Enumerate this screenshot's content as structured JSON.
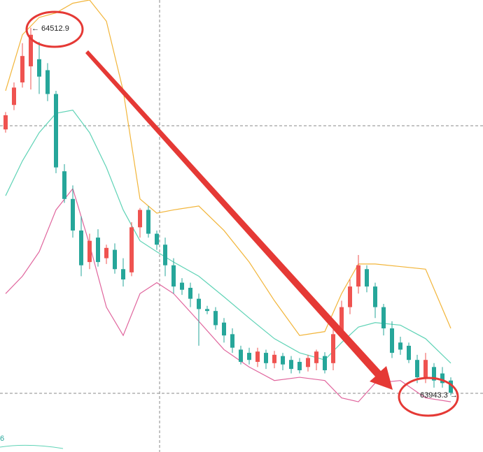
{
  "chart_data": {
    "type": "candlestick",
    "ylim": [
      63854,
      64556
    ],
    "up_color": "#ef5350",
    "down_color": "#26a69a",
    "open": [
      64355,
      64393,
      64428,
      64453,
      64464,
      64447,
      64410,
      64290,
      64247,
      64198,
      64149,
      64187,
      64155,
      64168,
      64138,
      64133,
      64203,
      64230,
      64193,
      64176,
      64144,
      64117,
      64109,
      64092,
      64076,
      64073,
      64055,
      64037,
      64013,
      64008,
      63994,
      64008,
      63992,
      64003,
      63997,
      63994,
      63986,
      63992,
      64003,
      63992,
      64037,
      64079,
      64111,
      64138,
      64111,
      64079,
      64046,
      64024,
      64019,
      63997,
      63970,
      63986,
      63976,
      63965
    ],
    "close": [
      64377,
      64420,
      64469,
      64502,
      64437,
      64410,
      64296,
      64247,
      64198,
      64144,
      64182,
      64149,
      64171,
      64138,
      64122,
      64203,
      64230,
      64193,
      64176,
      64144,
      64111,
      64106,
      64092,
      64076,
      64073,
      64051,
      64035,
      64016,
      63994,
      63997,
      64010,
      63992,
      64005,
      63990,
      63983,
      63981,
      64000,
      64010,
      63981,
      64037,
      64079,
      64111,
      64144,
      64111,
      64079,
      64046,
      64008,
      64013,
      63997,
      63970,
      63997,
      63965,
      63961,
      63946
    ],
    "high": [
      64382,
      64428,
      64489,
      64513,
      64491,
      64458,
      64415,
      64301,
      64268,
      64220,
      64193,
      64200,
      64176,
      64178,
      64155,
      64211,
      64233,
      64236,
      64198,
      64187,
      64155,
      64124,
      64117,
      64100,
      64081,
      64079,
      64062,
      64046,
      64019,
      64016,
      64016,
      64013,
      64011,
      64008,
      64003,
      64000,
      64005,
      64013,
      64009,
      64046,
      64089,
      64122,
      64160,
      64144,
      64117,
      64084,
      64057,
      64033,
      64024,
      64005,
      64008,
      63992,
      63986,
      63970
    ],
    "low": [
      64350,
      64385,
      64420,
      64417,
      64410,
      64399,
      64287,
      64241,
      64187,
      64127,
      64138,
      64142,
      64146,
      64131,
      64111,
      64127,
      64187,
      64187,
      64168,
      64127,
      64100,
      64098,
      64079,
      64019,
      64068,
      64044,
      64024,
      64008,
      63990,
      63990,
      63986,
      63983,
      63984,
      63981,
      63976,
      63976,
      63979,
      63981,
      63976,
      63981,
      64030,
      64068,
      64100,
      64102,
      64062,
      64035,
      64000,
      64005,
      63992,
      63961,
      63961,
      63954,
      63954,
      63942
    ],
    "bands": [
      {
        "color": "#f2b53a",
        "x": [
          0,
          2,
          4,
          6,
          8,
          10,
          12,
          14,
          16,
          18,
          20,
          23,
          26,
          29,
          32,
          35,
          38,
          40,
          42,
          44,
          47,
          50,
          53
        ],
        "values": [
          64415,
          64502,
          64529,
          64536,
          64551,
          64556,
          64523,
          64415,
          64247,
          64225,
          64230,
          64236,
          64198,
          64149,
          64089,
          64035,
          64041,
          64100,
          64146,
          64146,
          64142,
          64138,
          64046
        ]
      },
      {
        "color": "#5fd3b6",
        "x": [
          0,
          2,
          4,
          6,
          8,
          10,
          12,
          14,
          16,
          18,
          20,
          23,
          26,
          29,
          32,
          35,
          38,
          40,
          42,
          44,
          47,
          50,
          53
        ],
        "values": [
          64252,
          64306,
          64350,
          64380,
          64385,
          64350,
          64296,
          64230,
          64182,
          64165,
          64149,
          64127,
          64095,
          64062,
          64030,
          64008,
          63997,
          64024,
          64048,
          64055,
          64051,
          64030,
          63992
        ]
      },
      {
        "color": "#e0659d",
        "x": [
          0,
          2,
          4,
          6,
          8,
          10,
          12,
          14,
          16,
          18,
          20,
          23,
          26,
          29,
          32,
          35,
          38,
          40,
          42,
          44,
          47,
          50,
          53
        ],
        "values": [
          64100,
          64127,
          64165,
          64230,
          64263,
          64176,
          64079,
          64035,
          64100,
          64117,
          64100,
          64057,
          64013,
          63986,
          63965,
          63970,
          63965,
          63938,
          63932,
          63961,
          63965,
          63938,
          63932
        ]
      }
    ],
    "annotations": [
      {
        "text": "← 64512.9"
      },
      {
        "text": "63943.3 →"
      },
      {
        "text": "6"
      }
    ]
  }
}
